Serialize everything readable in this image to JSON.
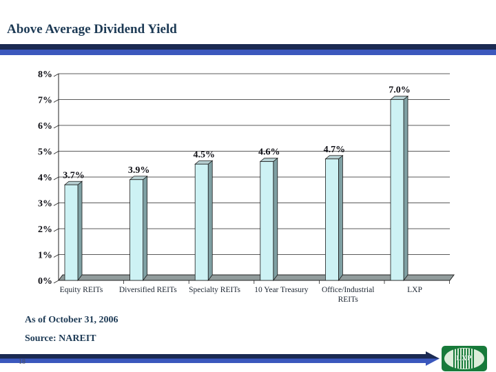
{
  "slide": {
    "title": "Above Average Dividend Yield",
    "footnote_line1": "As of October 31, 2006",
    "footnote_line2": "Source: NAREIT",
    "page_number": "18",
    "logo_text": "LXP"
  },
  "colors": {
    "title_text": "#1d3a55",
    "divider_navy": "#1b2a52",
    "divider_blue": "#3b58bd",
    "bar_face": "#cdf2f4",
    "bar_side": "#7fa0a3",
    "bar_top": "#b6cfd1",
    "floor": "#919c9c",
    "logo_green": "#177a3a",
    "logo_oval_bg": "#dcedda"
  },
  "chart_data": {
    "type": "bar",
    "style": "3d-column",
    "title": "",
    "xlabel": "",
    "ylabel": "",
    "categories": [
      "Equity REITs",
      "Diversified REITs",
      "Specialty REITs",
      "10 Year Treasury",
      "Office/Industrial REITs",
      "LXP"
    ],
    "categories_display": [
      [
        "Equity REITs"
      ],
      [
        "Diversified REITs"
      ],
      [
        "Specialty REITs"
      ],
      [
        "10 Year Treasury"
      ],
      [
        "Office/Industrial",
        "REITs"
      ],
      [
        "LXP"
      ]
    ],
    "values": [
      3.7,
      3.9,
      4.5,
      4.6,
      4.7,
      7.0
    ],
    "value_labels": [
      "3.7%",
      "3.9%",
      "4.5%",
      "4.6%",
      "4.7%",
      "7.0%"
    ],
    "ylim": [
      0,
      8
    ],
    "ytick_step": 1,
    "ytick_labels": [
      "0%",
      "1%",
      "2%",
      "3%",
      "4%",
      "5%",
      "6%",
      "7%",
      "8%"
    ],
    "grid": true,
    "legend": "none"
  }
}
